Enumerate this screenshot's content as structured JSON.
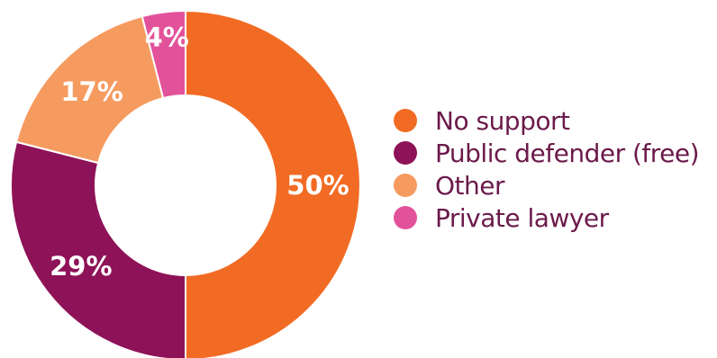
{
  "chart_data": {
    "type": "pie",
    "variant": "donut",
    "title": "",
    "legend_position": "right",
    "value_suffix": "%",
    "slices": [
      {
        "label": "No support",
        "value": 50,
        "color": "#f26b24"
      },
      {
        "label": "Public defender (free)",
        "value": 29,
        "color": "#8e1257"
      },
      {
        "label": "Other",
        "value": 17,
        "color": "#f59b60"
      },
      {
        "label": "Private lawyer",
        "value": 4,
        "color": "#e2529b"
      }
    ]
  },
  "legend": {
    "text_color": "#6b1a4a"
  }
}
